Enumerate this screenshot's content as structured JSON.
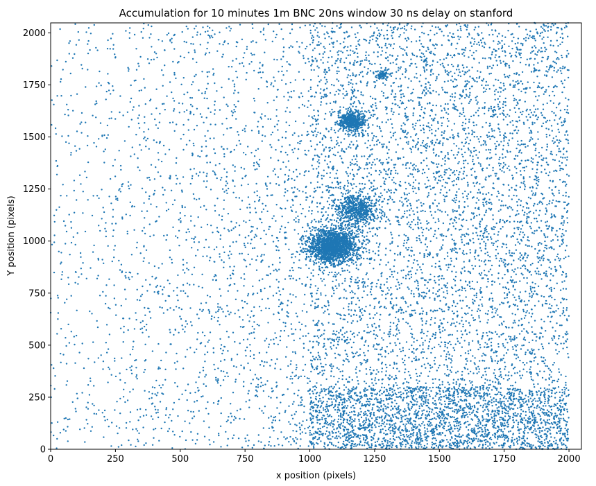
{
  "chart_data": {
    "type": "scatter",
    "title": "Accumulation for 10 minutes 1m BNC 20ns window 30 ns delay on stanford",
    "xlabel": "x position (pixels)",
    "ylabel": "Y position (pixels)",
    "xlim": [
      0,
      2048
    ],
    "ylim": [
      0,
      2048
    ],
    "xticks": [
      0,
      250,
      500,
      750,
      1000,
      1250,
      1500,
      1750,
      2000
    ],
    "yticks": [
      0,
      250,
      500,
      750,
      1000,
      1250,
      1500,
      1750,
      2000
    ],
    "grid": false,
    "marker_color": "#1f77b4",
    "marker_size": 1.2,
    "point_count_approx": 13000,
    "density_regions": [
      {
        "x": [
          0,
          1000
        ],
        "y": [
          0,
          2048
        ],
        "relative_density": 0.35
      },
      {
        "x": [
          1000,
          2048
        ],
        "y": [
          300,
          2048
        ],
        "relative_density": 1.0
      },
      {
        "x": [
          1000,
          2048
        ],
        "y": [
          0,
          300
        ],
        "relative_density": 3.0
      }
    ],
    "clusters": [
      {
        "x": 1085,
        "y": 975,
        "spread": 45,
        "relative_size": 1.0
      },
      {
        "x": 1180,
        "y": 1150,
        "spread": 40,
        "relative_size": 0.35
      },
      {
        "x": 1160,
        "y": 1575,
        "spread": 25,
        "relative_size": 0.3
      },
      {
        "x": 1280,
        "y": 1800,
        "spread": 12,
        "relative_size": 0.05
      }
    ]
  }
}
